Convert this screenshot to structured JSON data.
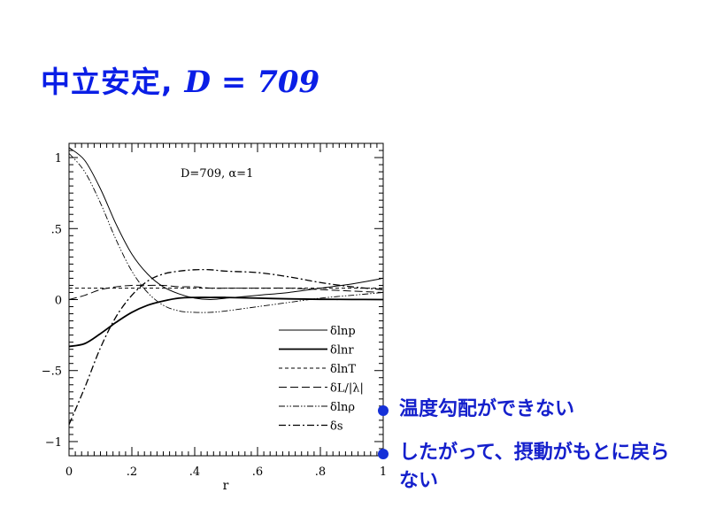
{
  "title": {
    "jp": "中立安定",
    "comma": ",",
    "math": "D = 709"
  },
  "bullets": [
    {
      "text": "温度勾配ができない"
    },
    {
      "text": "したがって、摂動がもとに戻らない"
    }
  ],
  "chart_data": {
    "type": "line",
    "annotation": "D=709,  α=1",
    "xlabel": "r",
    "ylabel": "",
    "xlim": [
      0,
      1
    ],
    "ylim": [
      -1.1,
      1.1
    ],
    "xticks": [
      0,
      0.2,
      0.4,
      0.6,
      0.8,
      1
    ],
    "xtick_labels": [
      "0",
      ".2",
      ".4",
      ".6",
      ".8",
      "1"
    ],
    "yticks": [
      1,
      0.5,
      0,
      -0.5,
      -1
    ],
    "ytick_labels": [
      "1",
      ".5",
      "0",
      "−.5",
      "−1"
    ],
    "x": [
      0,
      0.05,
      0.1,
      0.15,
      0.2,
      0.25,
      0.3,
      0.35,
      0.4,
      0.45,
      0.5,
      0.6,
      0.7,
      0.8,
      0.9,
      1.0
    ],
    "series": [
      {
        "name": "δlnp",
        "style": "solid-thin",
        "values": [
          1.07,
          0.98,
          0.78,
          0.53,
          0.32,
          0.18,
          0.09,
          0.04,
          0.01,
          0.0,
          0.01,
          0.03,
          0.05,
          0.08,
          0.11,
          0.15
        ]
      },
      {
        "name": "δlnr",
        "style": "solid-thick",
        "values": [
          -0.33,
          -0.31,
          -0.24,
          -0.16,
          -0.09,
          -0.04,
          -0.01,
          0.01,
          0.015,
          0.015,
          0.015,
          0.01,
          0.005,
          0.002,
          0.001,
          0.0
        ]
      },
      {
        "name": "δlnT",
        "style": "dashed",
        "values": [
          0.08,
          0.08,
          0.08,
          0.08,
          0.08,
          0.08,
          0.08,
          0.08,
          0.08,
          0.08,
          0.08,
          0.08,
          0.08,
          0.08,
          0.08,
          0.08
        ]
      },
      {
        "name": "δL/|λ|",
        "style": "long-dash",
        "values": [
          0.0,
          0.03,
          0.07,
          0.09,
          0.1,
          0.1,
          0.1,
          0.09,
          0.09,
          0.08,
          0.08,
          0.08,
          0.08,
          0.07,
          0.06,
          0.05
        ]
      },
      {
        "name": "δlnρ",
        "style": "dash-dot-dot",
        "values": [
          1.03,
          0.9,
          0.68,
          0.42,
          0.2,
          0.05,
          -0.04,
          -0.08,
          -0.09,
          -0.09,
          -0.08,
          -0.05,
          -0.02,
          0.01,
          0.03,
          0.05
        ]
      },
      {
        "name": "δs",
        "style": "dash-dot",
        "values": [
          -0.88,
          -0.62,
          -0.34,
          -0.12,
          0.03,
          0.13,
          0.18,
          0.2,
          0.21,
          0.21,
          0.2,
          0.19,
          0.16,
          0.12,
          0.09,
          0.07
        ]
      }
    ]
  }
}
